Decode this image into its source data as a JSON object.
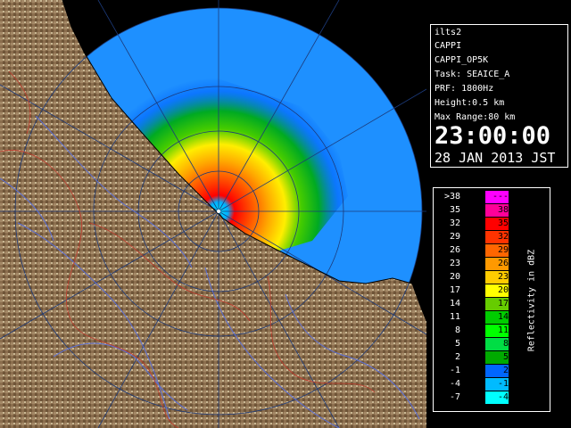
{
  "info": {
    "station": "ilts2",
    "product": "CAPPI",
    "product_code": "CAPPI_OP5K",
    "task": "Task: SEAICE_A",
    "prf": "PRF: 1800Hz",
    "height": "Height:0.5 km",
    "max_range": "Max Range:80 km",
    "time": "23:00:00",
    "date": "28 JAN 2013 JST"
  },
  "legend": {
    "unit_label": "Reflectivity in dBZ",
    "rows": [
      {
        "low": ">38",
        "high": "---",
        "color": "#ff00ff"
      },
      {
        "low": "35",
        "high": "38",
        "color": "#ff0099"
      },
      {
        "low": "32",
        "high": "35",
        "color": "#ff0000"
      },
      {
        "low": "29",
        "high": "32",
        "color": "#ff3300"
      },
      {
        "low": "26",
        "high": "29",
        "color": "#ff6600"
      },
      {
        "low": "23",
        "high": "26",
        "color": "#ff9900"
      },
      {
        "low": "20",
        "high": "23",
        "color": "#ffcc00"
      },
      {
        "low": "17",
        "high": "20",
        "color": "#ffff00"
      },
      {
        "low": "14",
        "high": "17",
        "color": "#66cc00"
      },
      {
        "low": "11",
        "high": "14",
        "color": "#00cc00"
      },
      {
        "low": "8",
        "high": "11",
        "color": "#00ff00"
      },
      {
        "low": "5",
        "high": "8",
        "color": "#00dd44"
      },
      {
        "low": "2",
        "high": "5",
        "color": "#00aa00"
      },
      {
        "low": "-1",
        "high": "2",
        "color": "#0066ff"
      },
      {
        "low": "-4",
        "high": "-1",
        "color": "#00bbff"
      },
      {
        "low": "-7",
        "high": "-4",
        "color": "#00ffff"
      }
    ]
  },
  "colors": {
    "sea_echo": "#0b6cf0",
    "range_background": "#1e90ff",
    "land": "#8b6e4e",
    "rivers": "#5a6fd8",
    "boundaries": "#c0392b"
  }
}
